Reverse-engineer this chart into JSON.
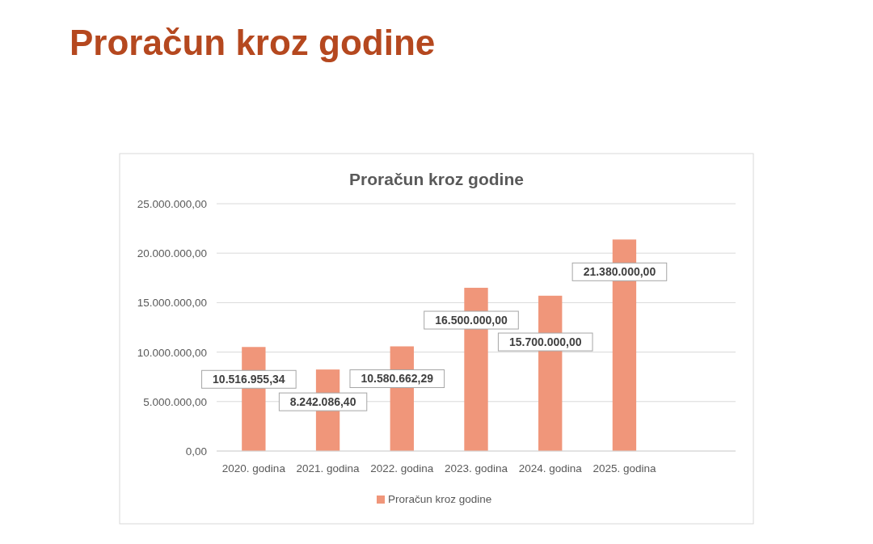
{
  "chart_data": {
    "type": "bar",
    "title": "Proračun kroz godine",
    "annotations": [
      "Proračun kroz godine"
    ],
    "categories": [
      "2020. godina",
      "2021. godina",
      "2022. godina",
      "2023. godina",
      "2024. godina",
      "2025. godina",
      null
    ],
    "series": [
      {
        "name": "Proračun kroz godine",
        "color": "#f0967a",
        "values": [
          10516955.34,
          8242086.4,
          10580662.29,
          16500000,
          15700000,
          21380000,
          null
        ],
        "value_labels": [
          "10.516.955,34",
          "8.242.086,40",
          "10.580.662,29",
          "16.500.000,00",
          "15.700.000,00",
          "21.380.000,00",
          null
        ]
      }
    ],
    "ylim": [
      0,
      25000000
    ],
    "yticks": [
      {
        "value": 0,
        "label": "0,00"
      },
      {
        "value": 5000000,
        "label": "5.000.000,00"
      },
      {
        "value": 10000000,
        "label": "10.000.000,00"
      },
      {
        "value": 15000000,
        "label": "15.000.000,00"
      },
      {
        "value": 20000000,
        "label": "20.000.000,00"
      },
      {
        "value": 25000000,
        "label": "25.000.000,00"
      }
    ],
    "grid": "y",
    "legend": "bottom"
  }
}
